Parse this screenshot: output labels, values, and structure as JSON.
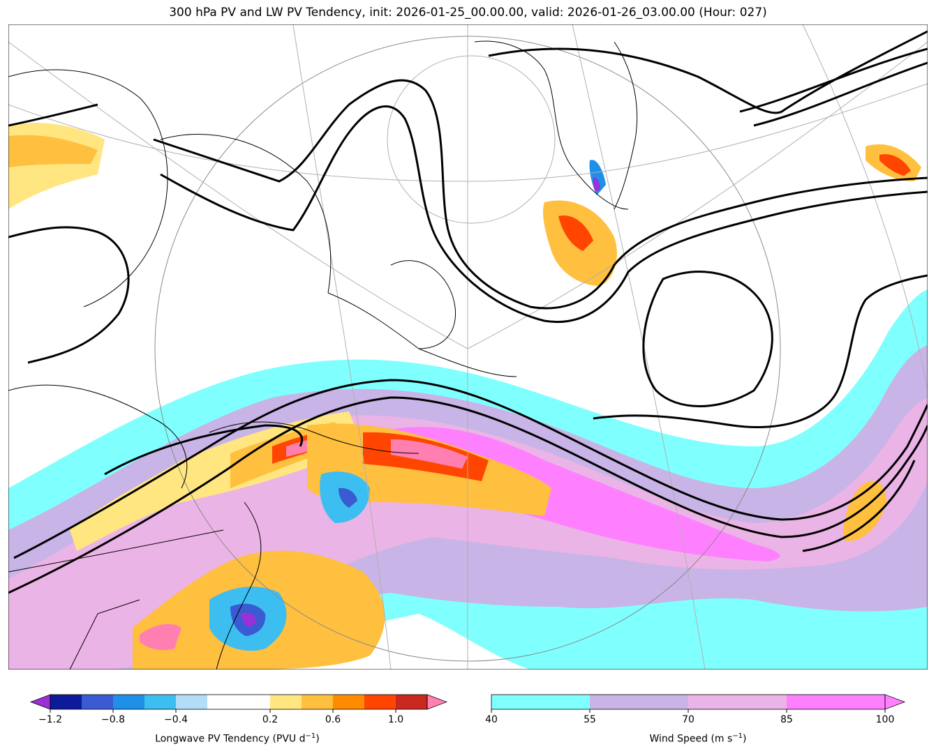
{
  "title": "300 hPa PV and LW PV Tendency, init: 2026-01-25_00.00.00, valid: 2026-01-26_03.00.00 (Hour: 027)",
  "chart_data": {
    "type": "heatmap",
    "title": "300 hPa PV and LW PV Tendency, init: 2026-01-25_00.00.00, valid: 2026-01-26_03.00.00 (Hour: 027)",
    "fields": [
      "300 hPa PV (black contours)",
      "Longwave PV Tendency (filled)",
      "Wind Speed (filled)"
    ],
    "colorbars": [
      {
        "label": "Longwave PV Tendency (PVU d⁻¹)",
        "label_base": "Longwave PV Tendency (PVU d",
        "label_sup": "−1",
        "label_end": ")",
        "levels": [
          -1.2,
          -1.0,
          -0.8,
          -0.6,
          -0.4,
          -0.2,
          0.2,
          0.4,
          0.6,
          0.8,
          1.0,
          1.2
        ],
        "tick_values": [
          -1.2,
          -0.8,
          -0.4,
          0.2,
          0.6,
          1.0
        ],
        "tick_labels": [
          "−1.2",
          "−0.8",
          "−0.4",
          "0.2",
          "0.6",
          "1.0"
        ],
        "colors": [
          "#0d1a99",
          "#3a5bd1",
          "#1e90e8",
          "#3cbef0",
          "#b3dcf7",
          "#ffffff",
          "#ffe680",
          "#ffbf3f",
          "#ff8c00",
          "#ff4500",
          "#c8281e"
        ],
        "under_color": "#9b30d9",
        "over_color": "#ff80b0",
        "extend": "both"
      },
      {
        "label": "Wind Speed (m s⁻¹)",
        "label_base": "Wind Speed (m s",
        "label_sup": "−1",
        "label_end": ")",
        "levels": [
          40,
          55,
          70,
          85,
          100
        ],
        "tick_values": [
          40,
          55,
          70,
          85,
          100
        ],
        "tick_labels": [
          "40",
          "55",
          "70",
          "85",
          "100"
        ],
        "colors": [
          "#80ffff",
          "#c8b4e6",
          "#ebb4e6",
          "#ff80ff"
        ],
        "over_color": "#ff80ff",
        "extend": "max"
      }
    ]
  }
}
